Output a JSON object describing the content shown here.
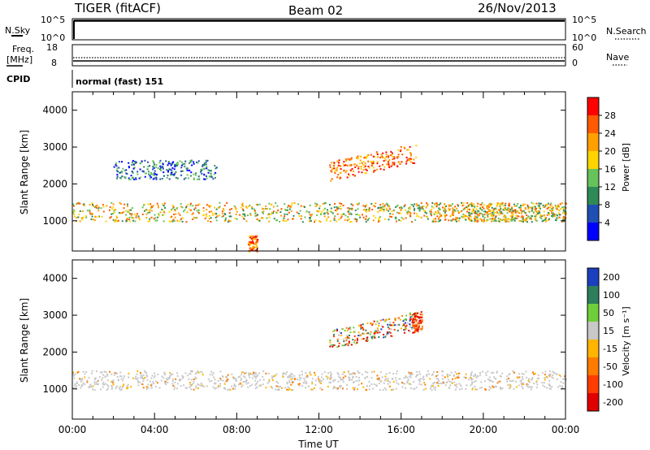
{
  "header": {
    "radar": "TIGER (fitACF)",
    "beam": "Beam 02",
    "date": "26/Nov/2013"
  },
  "status_panels": {
    "nsky": {
      "label": "N.Sky",
      "ticks": [
        "10^5",
        "10^0"
      ]
    },
    "nsearch": {
      "label": "N.Search",
      "ticks": [
        "10^5",
        "10^0"
      ]
    },
    "freq": {
      "label_line1": "Freq.",
      "label_line2": "[MHz]",
      "ticks": [
        "18",
        "8"
      ]
    },
    "nave": {
      "label": "Nave",
      "ticks": [
        "60",
        "0"
      ]
    },
    "cpid": {
      "label": "CPID",
      "value": "normal (fast) 151"
    }
  },
  "chart_data": [
    {
      "type": "heatmap",
      "name": "power",
      "ylabel": "Slant Range [km]",
      "yticks": [
        "1000",
        "2000",
        "3000",
        "4000"
      ],
      "ylim": [
        180,
        4500
      ],
      "xlim": [
        0,
        24
      ],
      "xlabel": "",
      "colorbar": {
        "label": "Power [dB]",
        "ticks": [
          "4",
          "8",
          "12",
          "16",
          "20",
          "24",
          "28"
        ],
        "range": [
          0,
          30
        ],
        "colors": [
          "#0000ff",
          "#1f4fb4",
          "#2e8b57",
          "#66c25a",
          "#ffd400",
          "#ff9f00",
          "#ff5a00",
          "#ff0000"
        ]
      },
      "bands": [
        {
          "start_ut": 0.0,
          "end_ut": 24.0,
          "range_km": 1250,
          "level": "mid"
        },
        {
          "start_ut": 2.0,
          "end_ut": 7.0,
          "range_km": 2400,
          "level": "low"
        },
        {
          "start_ut": 12.5,
          "end_ut": 16.7,
          "range_km": 2350,
          "level": "high"
        },
        {
          "start_ut": 17.5,
          "end_ut": 24.0,
          "range_km": 1250,
          "level": "mid"
        },
        {
          "start_ut": 8.5,
          "end_ut": 9.0,
          "range_km": 350,
          "level": "high"
        }
      ]
    },
    {
      "type": "heatmap",
      "name": "velocity",
      "ylabel": "Slant Range [km]",
      "yticks": [
        "1000",
        "2000",
        "3000",
        "4000"
      ],
      "ylim": [
        180,
        4500
      ],
      "xlim": [
        0,
        24
      ],
      "xlabel": "Time UT",
      "xticks": [
        "00:00",
        "04:00",
        "08:00",
        "12:00",
        "16:00",
        "20:00",
        "00:00"
      ],
      "colorbar": {
        "label": "Velocity [m s⁻¹]",
        "ticks": [
          "200",
          "100",
          "50",
          "15",
          "-15",
          "-50",
          "-100",
          "-200"
        ],
        "colors": [
          "#1a3fbf",
          "#2e7d5b",
          "#6fcf3a",
          "#c8c8c8",
          "#ffb400",
          "#ff7b00",
          "#ff3c00",
          "#e00000"
        ]
      },
      "bands": [
        {
          "start_ut": 0.0,
          "end_ut": 24.0,
          "range_km": 1250,
          "level": "ground"
        },
        {
          "start_ut": 12.5,
          "end_ut": 16.7,
          "range_km": 2350,
          "level": "mixed"
        },
        {
          "start_ut": 16.5,
          "end_ut": 17.0,
          "range_km": 2800,
          "level": "negative"
        }
      ]
    }
  ]
}
